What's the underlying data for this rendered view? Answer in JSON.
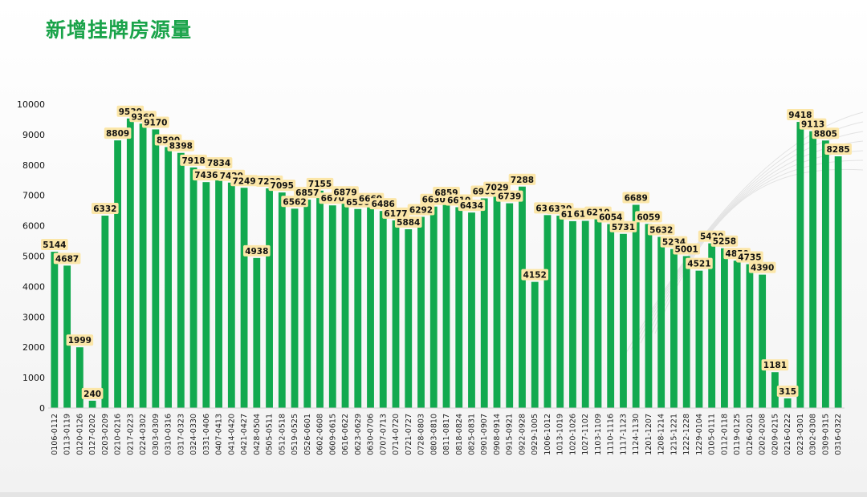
{
  "title": "新增挂牌房源量",
  "chart_data": {
    "type": "bar",
    "title": "新增挂牌房源量",
    "ylim": [
      0,
      10000
    ],
    "yticks": [
      0,
      1000,
      2000,
      3000,
      4000,
      5000,
      6000,
      7000,
      8000,
      9000,
      10000
    ],
    "grid": false,
    "bar_color": "#12a94f",
    "label_bg": "#fbe6a8",
    "categories": [
      "0106-0112",
      "0113-0119",
      "0120-0126",
      "0127-0202",
      "0203-0209",
      "0210-0216",
      "0217-0223",
      "0224-0302",
      "0303-0309",
      "0310-0316",
      "0317-0323",
      "0324-0330",
      "0331-0406",
      "0407-0413",
      "0414-0420",
      "0421-0427",
      "0428-0504",
      "0505-0511",
      "0512-0518",
      "0519-0525",
      "0526-0601",
      "0602-0608",
      "0609-0615",
      "0616-0622",
      "0623-0629",
      "0630-0706",
      "0707-0713",
      "0714-0720",
      "0721-0727",
      "0728-0803",
      "0803-0810",
      "0811-0817",
      "0818-0824",
      "0825-0831",
      "0901-0907",
      "0908-0914",
      "0915-0921",
      "0922-0928",
      "0929-1005",
      "1006-1012",
      "1013-1019",
      "1020-1026",
      "1027-1102",
      "1103-1109",
      "1110-1116",
      "1117-1123",
      "1124-1130",
      "1201-1207",
      "1208-1214",
      "1215-1221",
      "1222-1228",
      "1229-0104",
      "0105-0111",
      "0112-0118",
      "0119-0125",
      "0126-0201",
      "0202-0208",
      "0209-0215",
      "0216-0222",
      "0223-0301",
      "0302-0308",
      "0309-0315",
      "0316-0322"
    ],
    "values": [
      5144,
      4687,
      1999,
      240,
      6332,
      8809,
      9530,
      9360,
      9170,
      8590,
      8398,
      7918,
      7436,
      7834,
      7420,
      7249,
      4938,
      7230,
      7095,
      6562,
      6857,
      7155,
      6670,
      6879,
      6550,
      6660,
      6486,
      6177,
      5884,
      6292,
      6630,
      6859,
      6610,
      6434,
      6900,
      7029,
      6739,
      7288,
      4152,
      6350,
      6330,
      6150,
      6160,
      6210,
      6054,
      5731,
      6689,
      6059,
      5632,
      5234,
      5001,
      4521,
      5420,
      5258,
      4850,
      4735,
      4390,
      1181,
      315,
      9418,
      9113,
      8805,
      8285
    ],
    "labels": [
      "5144",
      "4687",
      "1999",
      "240",
      "6332",
      "8809",
      "9530",
      "9360",
      "9170",
      "8590",
      "8398",
      "7918",
      "7436",
      "7834",
      "7420",
      "7249",
      "4938",
      "7230",
      "7095",
      "6562",
      "6857",
      "7155",
      "6670",
      "6879",
      "6550",
      "6660",
      "6486",
      "6177",
      "5884",
      "6292",
      "6630",
      "6859",
      "6610",
      "6434",
      "6900",
      "7029",
      "6739",
      "7288",
      "4152",
      "6350",
      "6330",
      "6150",
      "6160",
      "6210",
      "6054",
      "5731",
      "6689",
      "6059",
      "5632",
      "5234",
      "5001",
      "4521",
      "5420",
      "5258",
      "4850",
      "4735",
      "4390",
      "1181",
      "315",
      "9418",
      "9113",
      "8805",
      "8285"
    ]
  }
}
